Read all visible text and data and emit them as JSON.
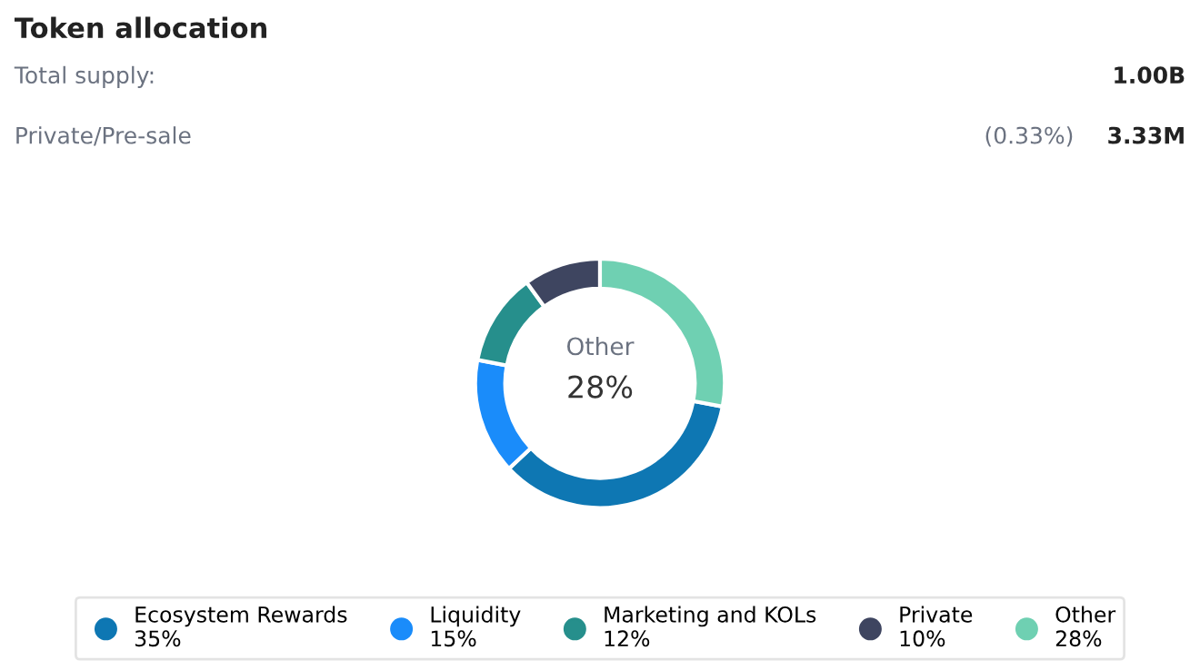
{
  "chart_data": {
    "type": "donut",
    "title": "Token allocation",
    "categories": [
      "Ecosystem Rewards",
      "Liquidity",
      "Marketing and KOLs",
      "Private",
      "Other"
    ],
    "values": [
      35,
      15,
      12,
      10,
      28
    ],
    "colors": [
      "#0e77b3",
      "#1a8cfa",
      "#268f8c",
      "#3e4560",
      "#6fd0b2"
    ],
    "value_labels": [
      "35%",
      "15%",
      "12%",
      "10%",
      "28%"
    ],
    "annotations": [
      "Total supply:",
      "1.00B",
      "Private/Pre-sale",
      "(0.33%)",
      "3.33M",
      "Other",
      "28%"
    ],
    "legend": "bottom"
  }
}
